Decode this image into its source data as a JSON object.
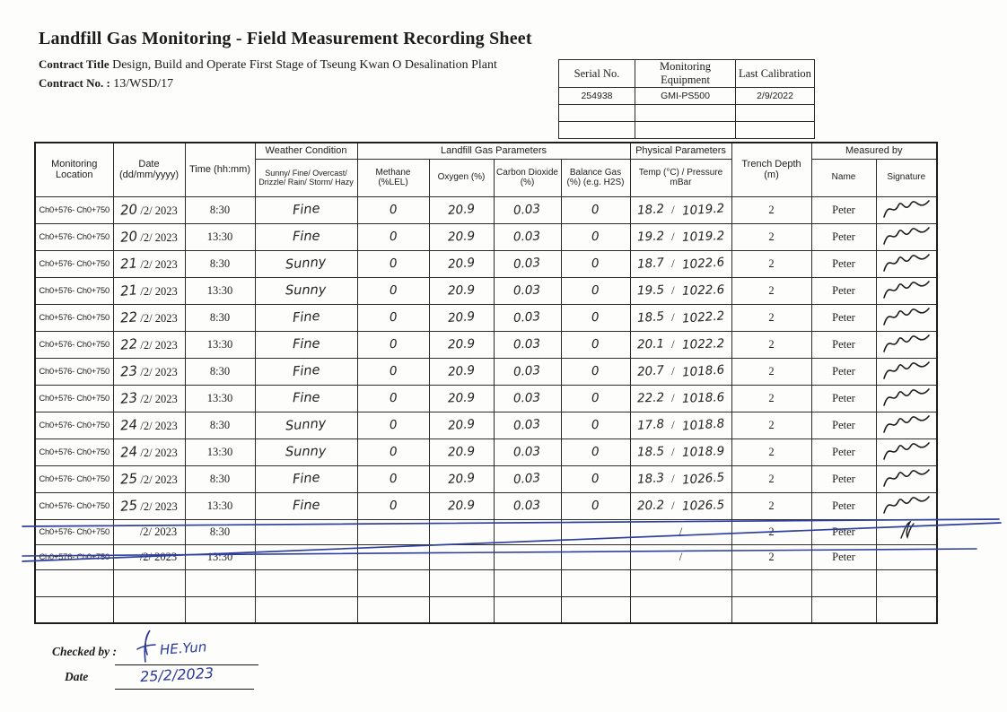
{
  "header": {
    "title": "Landfill Gas Monitoring - Field Measurement Recording Sheet",
    "contract_title_label": "Contract Title",
    "contract_title_value": "Design, Build and Operate First Stage of Tseung Kwan O Desalination Plant",
    "contract_no_label": "Contract No. :",
    "contract_no_value": "13/WSD/17"
  },
  "equipment_table": {
    "headers": [
      "Serial No.",
      "Monitoring Equipment",
      "Last Calibration"
    ],
    "rows": [
      [
        "254938",
        "GMI-PS500",
        "2/9/2022"
      ],
      [
        "",
        "",
        ""
      ],
      [
        "",
        "",
        ""
      ]
    ]
  },
  "main_table": {
    "headers": {
      "monitoring_location": "Monitoring Location",
      "date": "Date (dd/mm/yyyy)",
      "time": "Time (hh:mm)",
      "weather_group": "Weather Condition",
      "weather_sub": "Sunny/ Fine/ Overcast/ Drizzle/ Rain/ Storm/ Hazy",
      "gas_group": "Landfill Gas Parameters",
      "methane": "Methane (%LEL)",
      "oxygen": "Oxygen (%)",
      "co2": "Carbon Dioxide (%)",
      "balance": "Balance Gas (%) (e.g. H2S)",
      "physical_group": "Physical Parameters",
      "temp_pressure": "Temp (°C) / Pressure mBar",
      "trench": "Trench Depth (m)",
      "measured_group": "Measured by",
      "name": "Name",
      "signature": "Signature"
    },
    "date_suffix": "/2/ 2023",
    "rows": [
      {
        "location": "Ch0+576- Ch0+750",
        "day": "20",
        "show_date": true,
        "time": "8:30",
        "weather": "Fine",
        "methane": "0",
        "oxygen": "20.9",
        "co2": "0.03",
        "balance": "0",
        "temp": "18.2",
        "pressure": "1019.2",
        "show_slash": true,
        "trench": "2",
        "name": "Peter",
        "signature": "full",
        "struck": false
      },
      {
        "location": "Ch0+576- Ch0+750",
        "day": "20",
        "show_date": true,
        "time": "13:30",
        "weather": "Fine",
        "methane": "0",
        "oxygen": "20.9",
        "co2": "0.03",
        "balance": "0",
        "temp": "19.2",
        "pressure": "1019.2",
        "show_slash": true,
        "trench": "2",
        "name": "Peter",
        "signature": "full",
        "struck": false
      },
      {
        "location": "Ch0+576- Ch0+750",
        "day": "21",
        "show_date": true,
        "time": "8:30",
        "weather": "Sunny",
        "methane": "0",
        "oxygen": "20.9",
        "co2": "0.03",
        "balance": "0",
        "temp": "18.7",
        "pressure": "1022.6",
        "show_slash": true,
        "trench": "2",
        "name": "Peter",
        "signature": "full",
        "struck": false
      },
      {
        "location": "Ch0+576- Ch0+750",
        "day": "21",
        "show_date": true,
        "time": "13:30",
        "weather": "Sunny",
        "methane": "0",
        "oxygen": "20.9",
        "co2": "0.03",
        "balance": "0",
        "temp": "19.5",
        "pressure": "1022.6",
        "show_slash": true,
        "trench": "2",
        "name": "Peter",
        "signature": "full",
        "struck": false
      },
      {
        "location": "Ch0+576- Ch0+750",
        "day": "22",
        "show_date": true,
        "time": "8:30",
        "weather": "Fine",
        "methane": "0",
        "oxygen": "20.9",
        "co2": "0.03",
        "balance": "0",
        "temp": "18.5",
        "pressure": "1022.2",
        "show_slash": true,
        "trench": "2",
        "name": "Peter",
        "signature": "full",
        "struck": false
      },
      {
        "location": "Ch0+576- Ch0+750",
        "day": "22",
        "show_date": true,
        "time": "13:30",
        "weather": "Fine",
        "methane": "0",
        "oxygen": "20.9",
        "co2": "0.03",
        "balance": "0",
        "temp": "20.1",
        "pressure": "1022.2",
        "show_slash": true,
        "trench": "2",
        "name": "Peter",
        "signature": "full",
        "struck": false
      },
      {
        "location": "Ch0+576- Ch0+750",
        "day": "23",
        "show_date": true,
        "time": "8:30",
        "weather": "Fine",
        "methane": "0",
        "oxygen": "20.9",
        "co2": "0.03",
        "balance": "0",
        "temp": "20.7",
        "pressure": "1018.6",
        "show_slash": true,
        "trench": "2",
        "name": "Peter",
        "signature": "full",
        "struck": false
      },
      {
        "location": "Ch0+576- Ch0+750",
        "day": "23",
        "show_date": true,
        "time": "13:30",
        "weather": "Fine",
        "methane": "0",
        "oxygen": "20.9",
        "co2": "0.03",
        "balance": "0",
        "temp": "22.2",
        "pressure": "1018.6",
        "show_slash": true,
        "trench": "2",
        "name": "Peter",
        "signature": "full",
        "struck": false
      },
      {
        "location": "Ch0+576- Ch0+750",
        "day": "24",
        "show_date": true,
        "time": "8:30",
        "weather": "Sunny",
        "methane": "0",
        "oxygen": "20.9",
        "co2": "0.03",
        "balance": "0",
        "temp": "17.8",
        "pressure": "1018.8",
        "show_slash": true,
        "trench": "2",
        "name": "Peter",
        "signature": "full",
        "struck": false
      },
      {
        "location": "Ch0+576- Ch0+750",
        "day": "24",
        "show_date": true,
        "time": "13:30",
        "weather": "Sunny",
        "methane": "0",
        "oxygen": "20.9",
        "co2": "0.03",
        "balance": "0",
        "temp": "18.5",
        "pressure": "1018.9",
        "show_slash": true,
        "trench": "2",
        "name": "Peter",
        "signature": "full",
        "struck": false
      },
      {
        "location": "Ch0+576- Ch0+750",
        "day": "25",
        "show_date": true,
        "time": "8:30",
        "weather": "Fine",
        "methane": "0",
        "oxygen": "20.9",
        "co2": "0.03",
        "balance": "0",
        "temp": "18.3",
        "pressure": "1026.5",
        "show_slash": true,
        "trench": "2",
        "name": "Peter",
        "signature": "full",
        "struck": false
      },
      {
        "location": "Ch0+576- Ch0+750",
        "day": "25",
        "show_date": true,
        "time": "13:30",
        "weather": "Fine",
        "methane": "0",
        "oxygen": "20.9",
        "co2": "0.03",
        "balance": "0",
        "temp": "20.2",
        "pressure": "1026.5",
        "show_slash": true,
        "trench": "2",
        "name": "Peter",
        "signature": "full",
        "struck": false
      },
      {
        "location": "Ch0+576- Ch0+750",
        "day": "",
        "show_date": true,
        "time": "8:30",
        "weather": "",
        "methane": "",
        "oxygen": "",
        "co2": "",
        "balance": "",
        "temp": "",
        "pressure": "",
        "show_slash": true,
        "trench": "2",
        "name": "Peter",
        "signature": "mark",
        "struck": true
      },
      {
        "location": "Ch0+576- Ch0+750",
        "day": "",
        "show_date": true,
        "time": "13:30",
        "weather": "",
        "methane": "",
        "oxygen": "",
        "co2": "",
        "balance": "",
        "temp": "",
        "pressure": "",
        "show_slash": true,
        "trench": "2",
        "name": "Peter",
        "signature": "none",
        "struck": true
      },
      {
        "location": "",
        "day": "",
        "show_date": false,
        "time": "",
        "weather": "",
        "methane": "",
        "oxygen": "",
        "co2": "",
        "balance": "",
        "temp": "",
        "pressure": "",
        "show_slash": false,
        "trench": "",
        "name": "",
        "signature": "none",
        "struck": false
      },
      {
        "location": "",
        "day": "",
        "show_date": false,
        "time": "",
        "weather": "",
        "methane": "",
        "oxygen": "",
        "co2": "",
        "balance": "",
        "temp": "",
        "pressure": "",
        "show_slash": false,
        "trench": "",
        "name": "",
        "signature": "none",
        "struck": false
      }
    ]
  },
  "footer": {
    "checked_by_label": "Checked by :",
    "checked_by_signature": "HE.Yun",
    "date_label": "Date",
    "date_value": "25/2/2023"
  },
  "colors": {
    "ink": "#1c1c1c",
    "pen_blue": "#2b3a9a"
  }
}
